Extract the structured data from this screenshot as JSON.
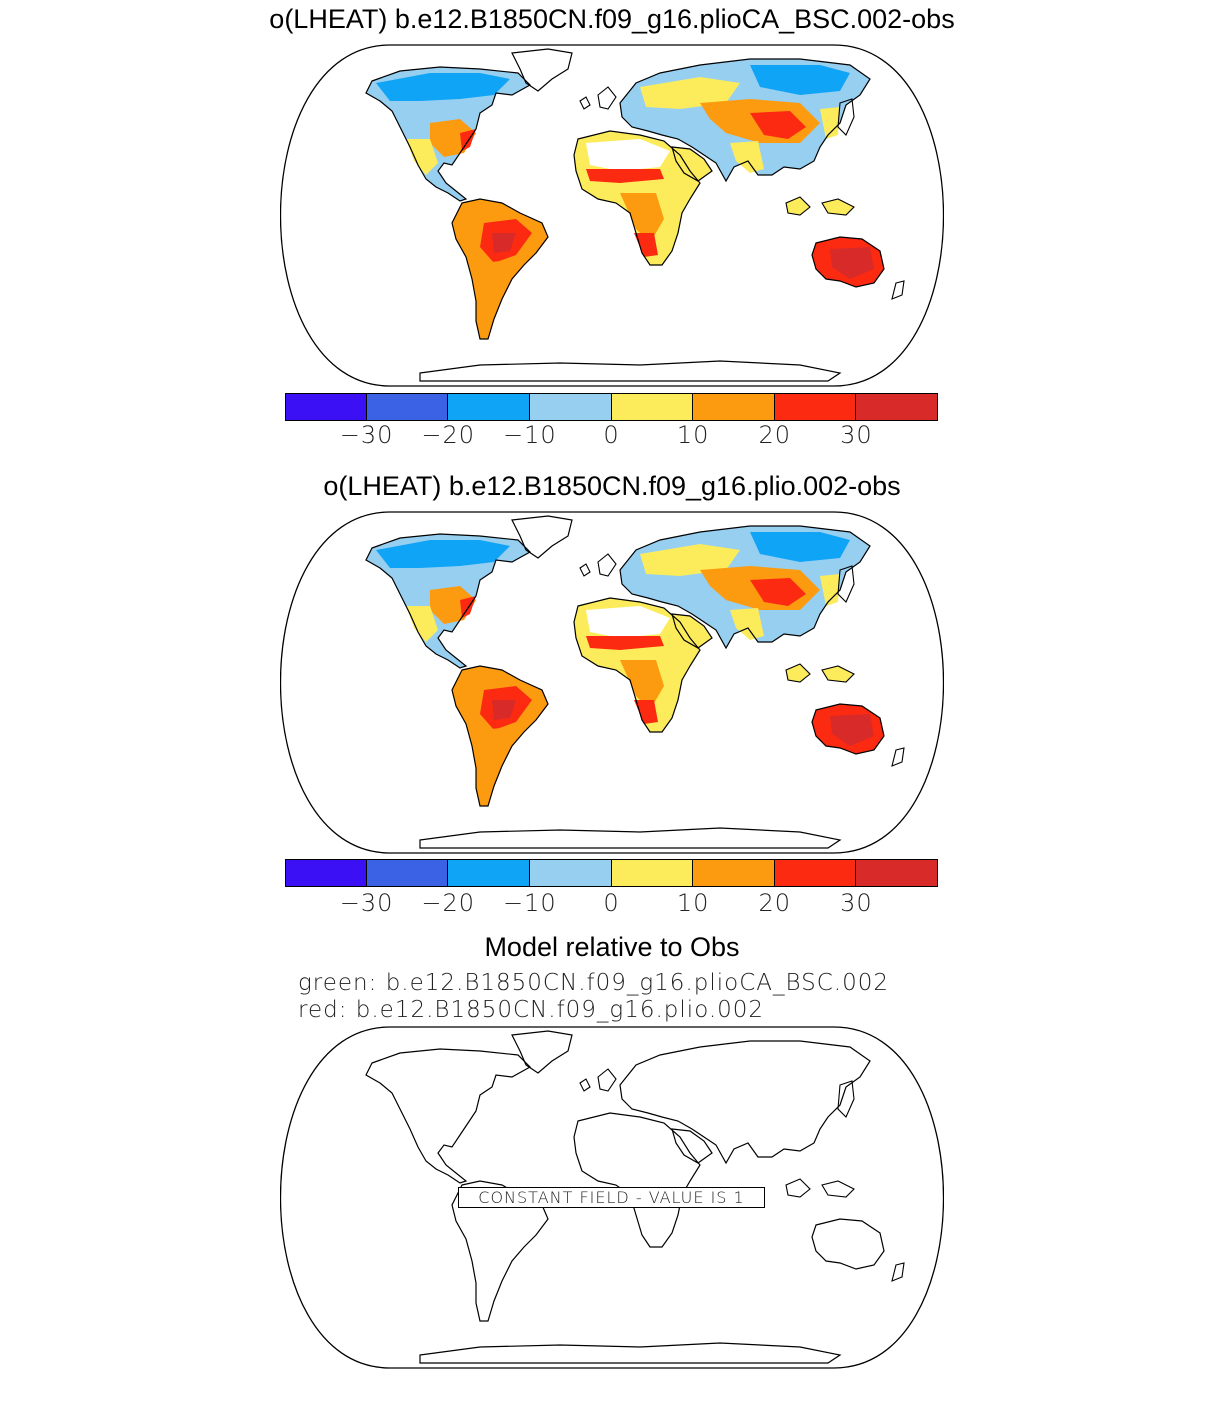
{
  "panels": [
    {
      "title": "o(LHEAT) b.e12.B1850CN.f09_g16.plioCA_BSC.002-obs"
    },
    {
      "title": "o(LHEAT) b.e12.B1850CN.f09_g16.plio.002-obs"
    }
  ],
  "colorbar": {
    "colors": [
      "#3b10f5",
      "#3b62e4",
      "#10a4f6",
      "#96cff0",
      "#fcec5c",
      "#fc9b10",
      "#fc2a10",
      "#d82a28"
    ],
    "tick_labels": [
      "−30",
      "−20",
      "−10",
      "0",
      "10",
      "20",
      "30"
    ]
  },
  "comparison": {
    "heading": "Model relative to Obs",
    "green_line": "green: b.e12.B1850CN.f09_g16.plioCA_BSC.002",
    "red_line": "red: b.e12.B1850CN.f09_g16.plio.002",
    "constant_field": "CONSTANT FIELD - VALUE IS 1"
  }
}
